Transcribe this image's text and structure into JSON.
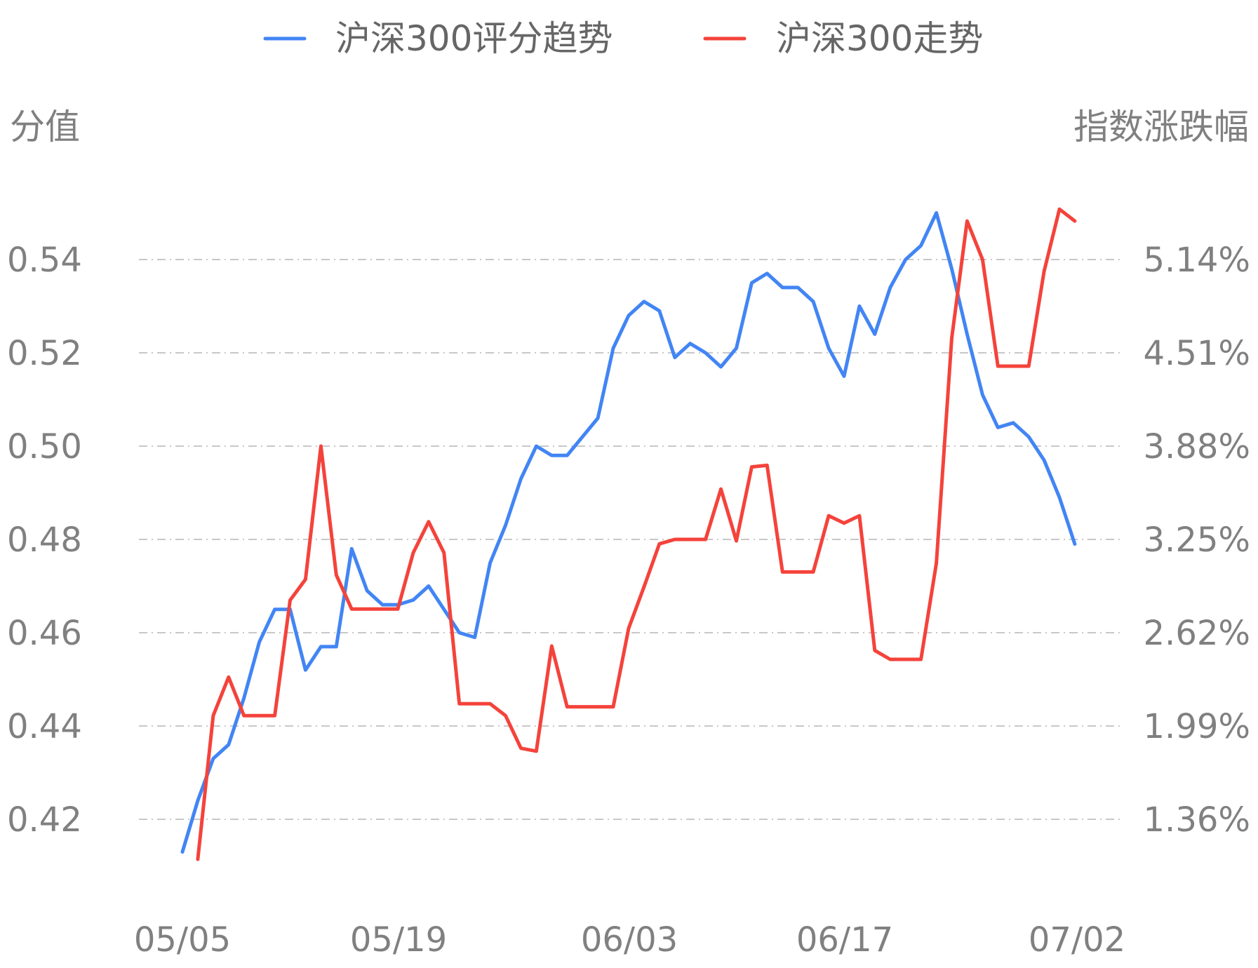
{
  "chart_data": {
    "type": "line",
    "legend_position": "top",
    "grid": "horizontal-dashed",
    "y_left_title": "分值",
    "y_right_title": "指数涨跌幅",
    "y_left_ticks": [
      "0.54",
      "0.52",
      "0.50",
      "0.48",
      "0.46",
      "0.44",
      "0.42"
    ],
    "y_right_ticks": [
      "5.14%",
      "4.51%",
      "3.88%",
      "3.25%",
      "2.62%",
      "1.99%",
      "1.36%"
    ],
    "x_tick_labels": [
      "05/05",
      "05/19",
      "06/03",
      "06/17",
      "07/02"
    ],
    "y_left_lim": [
      0.412,
      0.55
    ],
    "y_right_lim": [
      1.09,
      5.4
    ],
    "series": [
      {
        "name": "沪深300评分趋势",
        "axis": "left",
        "color": "#4285f4",
        "points": [
          [
            0,
            0.413
          ],
          [
            1,
            0.424
          ],
          [
            2,
            0.433
          ],
          [
            3,
            0.436
          ],
          [
            4,
            0.446
          ],
          [
            5,
            0.458
          ],
          [
            6,
            0.465
          ],
          [
            7,
            0.465
          ],
          [
            8,
            0.452
          ],
          [
            9,
            0.457
          ],
          [
            10,
            0.457
          ],
          [
            11,
            0.478
          ],
          [
            12,
            0.469
          ],
          [
            13,
            0.466
          ],
          [
            14,
            0.466
          ],
          [
            15,
            0.467
          ],
          [
            16,
            0.47
          ],
          [
            17,
            0.465
          ],
          [
            18,
            0.46
          ],
          [
            19,
            0.459
          ],
          [
            20,
            0.475
          ],
          [
            21,
            0.483
          ],
          [
            22,
            0.493
          ],
          [
            23,
            0.5
          ],
          [
            24,
            0.498
          ],
          [
            25,
            0.498
          ],
          [
            26,
            0.502
          ],
          [
            27,
            0.506
          ],
          [
            28,
            0.521
          ],
          [
            29,
            0.528
          ],
          [
            30,
            0.531
          ],
          [
            31,
            0.529
          ],
          [
            32,
            0.519
          ],
          [
            33,
            0.522
          ],
          [
            34,
            0.52
          ],
          [
            35,
            0.517
          ],
          [
            36,
            0.521
          ],
          [
            37,
            0.535
          ],
          [
            38,
            0.537
          ],
          [
            39,
            0.534
          ],
          [
            40,
            0.534
          ],
          [
            41,
            0.531
          ],
          [
            42,
            0.521
          ],
          [
            43,
            0.515
          ],
          [
            44,
            0.53
          ],
          [
            45,
            0.524
          ],
          [
            46,
            0.534
          ],
          [
            47,
            0.54
          ],
          [
            48,
            0.543
          ],
          [
            49,
            0.55
          ],
          [
            50,
            0.538
          ],
          [
            51,
            0.524
          ],
          [
            52,
            0.511
          ],
          [
            53,
            0.504
          ],
          [
            54,
            0.505
          ],
          [
            55,
            0.502
          ],
          [
            56,
            0.497
          ],
          [
            57,
            0.489
          ],
          [
            58,
            0.479
          ]
        ]
      },
      {
        "name": "沪深300走势",
        "axis": "right",
        "color": "#f4433b",
        "points": [
          [
            1,
            1.09
          ],
          [
            2,
            2.06
          ],
          [
            3,
            2.32
          ],
          [
            4,
            2.06
          ],
          [
            5,
            2.06
          ],
          [
            6,
            2.06
          ],
          [
            7,
            2.84
          ],
          [
            8,
            2.98
          ],
          [
            9,
            3.88
          ],
          [
            10,
            3.01
          ],
          [
            11,
            2.78
          ],
          [
            12,
            2.78
          ],
          [
            13,
            2.78
          ],
          [
            14,
            2.78
          ],
          [
            15,
            3.16
          ],
          [
            16,
            3.37
          ],
          [
            17,
            3.16
          ],
          [
            18,
            2.14
          ],
          [
            19,
            2.14
          ],
          [
            20,
            2.14
          ],
          [
            21,
            2.06
          ],
          [
            22,
            1.84
          ],
          [
            23,
            1.82
          ],
          [
            24,
            2.53
          ],
          [
            25,
            2.12
          ],
          [
            26,
            2.12
          ],
          [
            27,
            2.12
          ],
          [
            28,
            2.12
          ],
          [
            29,
            2.65
          ],
          [
            30,
            2.93
          ],
          [
            31,
            3.22
          ],
          [
            32,
            3.25
          ],
          [
            33,
            3.25
          ],
          [
            34,
            3.25
          ],
          [
            35,
            3.59
          ],
          [
            36,
            3.24
          ],
          [
            37,
            3.74
          ],
          [
            38,
            3.75
          ],
          [
            39,
            3.03
          ],
          [
            40,
            3.03
          ],
          [
            41,
            3.03
          ],
          [
            42,
            3.41
          ],
          [
            43,
            3.36
          ],
          [
            44,
            3.41
          ],
          [
            45,
            2.5
          ],
          [
            46,
            2.44
          ],
          [
            47,
            2.44
          ],
          [
            48,
            2.44
          ],
          [
            49,
            3.09
          ],
          [
            50,
            4.61
          ],
          [
            51,
            5.4
          ],
          [
            52,
            5.14
          ],
          [
            53,
            4.42
          ],
          [
            54,
            4.42
          ],
          [
            55,
            4.42
          ],
          [
            56,
            5.06
          ],
          [
            57,
            5.48
          ],
          [
            58,
            5.4
          ]
        ]
      }
    ]
  }
}
